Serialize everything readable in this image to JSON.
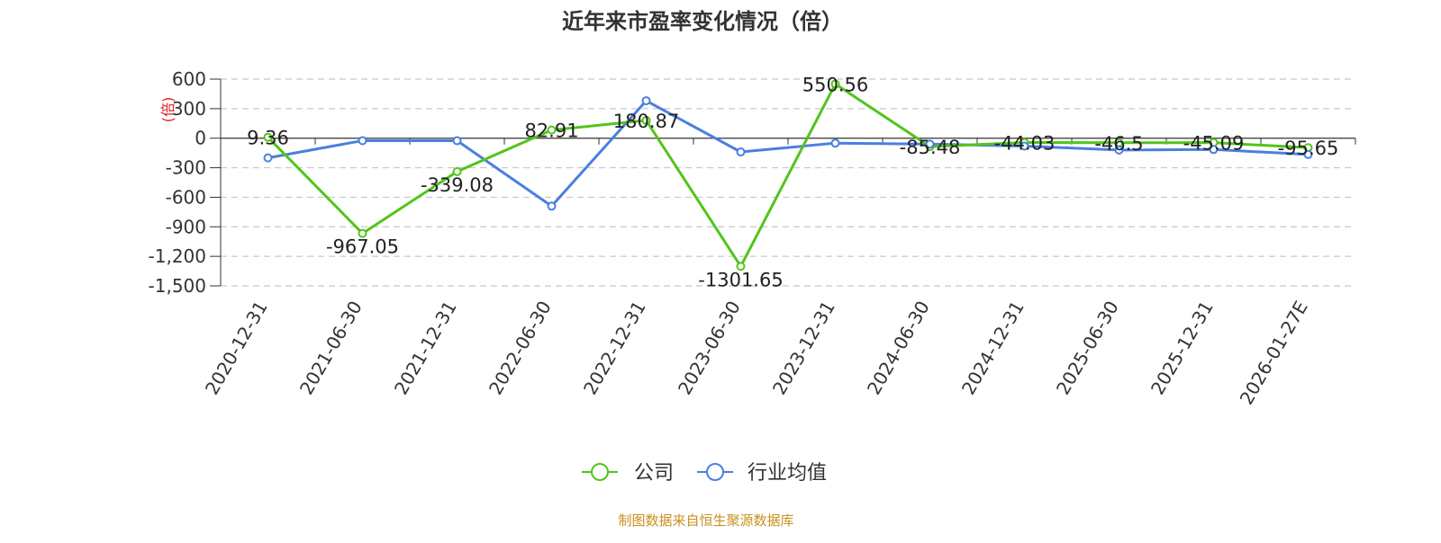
{
  "chart_data": {
    "type": "line",
    "title": "近年来市盈率变化情况（倍）",
    "ylabel": "(倍)",
    "xlabel": "",
    "categories": [
      "2020-12-31",
      "2021-06-30",
      "2021-12-31",
      "2022-06-30",
      "2022-12-31",
      "2023-06-30",
      "2023-12-31",
      "2024-06-30",
      "2024-12-31",
      "2025-06-30",
      "2025-12-31",
      "2026-01-27E"
    ],
    "yticks": [
      "600",
      "300",
      "0",
      "-300",
      "-600",
      "-900",
      "-1,200",
      "-1,500"
    ],
    "ylim": [
      -1500,
      600
    ],
    "grid": true,
    "legend_position": "bottom-center",
    "series": [
      {
        "name": "公司",
        "color": "#52c41a",
        "values": [
          9.36,
          -967.05,
          -339.08,
          82.91,
          180.87,
          -1301.65,
          550.56,
          -85.48,
          -44.03,
          -46.5,
          -45.09,
          -95.65
        ],
        "labels": [
          "9.36",
          "-967.05",
          "-339.08",
          "82.91",
          "180.87",
          "-1301.65",
          "550.56",
          "-85.48",
          "-44.03",
          "-46.5",
          "-45.09",
          "-95.65"
        ]
      },
      {
        "name": "行业均值",
        "color": "#4a7fe0",
        "values": [
          -200,
          -25,
          -25,
          -690,
          380,
          -140,
          -50,
          -60,
          -80,
          -120,
          -115,
          -165
        ]
      }
    ],
    "source": "制图数据来自恒生聚源数据库"
  }
}
